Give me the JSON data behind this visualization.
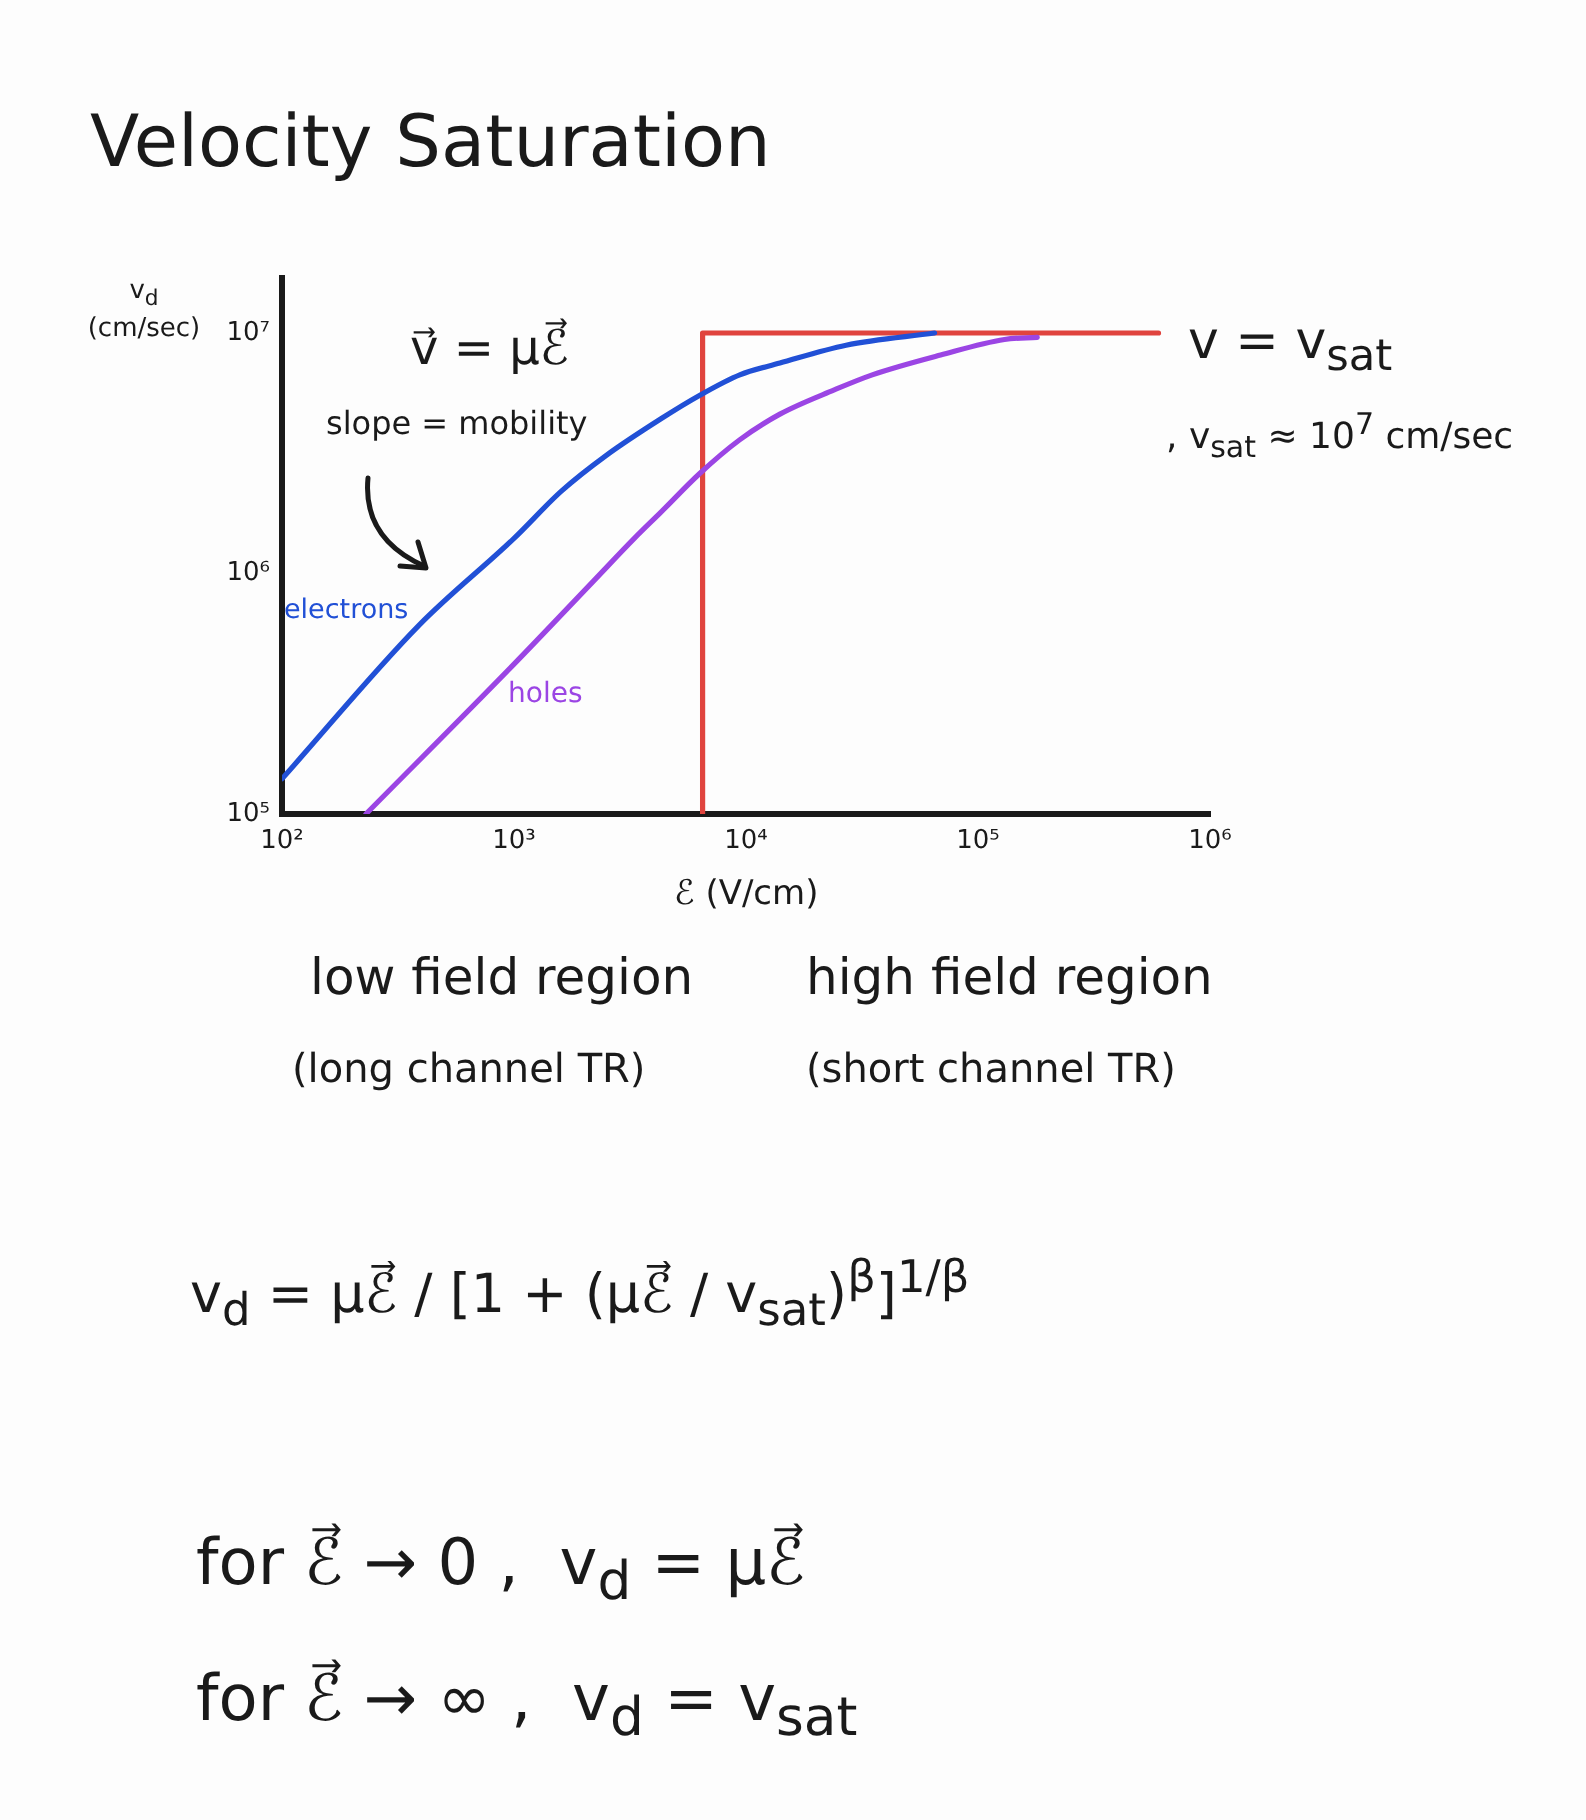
{
  "chart_data": {
    "type": "line",
    "title": "Velocity Saturation",
    "xlabel": "ℰ (V/cm)",
    "ylabel": "v$_{d}$ (cm/sec)",
    "series": [
      {
        "name": "electrons",
        "color": "#2150d6",
        "x": [
          100,
          390,
          1000,
          1600,
          2500,
          4300,
          6300,
          9400,
          14000,
          27000,
          65000
        ],
        "values": [
          140000,
          610000,
          1400000,
          2200000,
          3100000,
          4400000,
          5500000,
          6700000,
          7500000,
          8900000,
          10000000
        ]
      },
      {
        "name": "holes",
        "color": "#9b45e4",
        "x": [
          230,
          1000,
          2200,
          3300,
          4300,
          6300,
          9400,
          14000,
          24000,
          35000,
          69000,
          130000,
          180000
        ],
        "values": [
          100000,
          420000,
          930000,
          1400000,
          1800000,
          2600000,
          3600000,
          4600000,
          5800000,
          6700000,
          8100000,
          9400000,
          9600000
        ]
      },
      {
        "name": "v = v$_{sat}$",
        "color": "#e0443e",
        "x": [
          6500,
          6500,
          600000
        ],
        "values": [
          100000,
          10000000,
          10000000
        ]
      }
    ],
    "xlim": [
      100,
      1000000
    ],
    "ylim": [
      100000,
      17000000
    ],
    "xticks": [
      {
        "value": 100,
        "label": "10²"
      },
      {
        "value": 1000,
        "label": "10³"
      },
      {
        "value": 10000,
        "label": "10⁴"
      },
      {
        "value": 100000,
        "label": "10⁵"
      },
      {
        "value": 1000000,
        "label": "10⁶"
      }
    ],
    "yticks": [
      {
        "value": 100000,
        "label": "10⁵"
      },
      {
        "value": 1000000,
        "label": "10⁶"
      },
      {
        "value": 10000000,
        "label": "10⁷"
      }
    ],
    "log": "xy",
    "annotations": [
      "v⃗ = μℰ⃗",
      "slope = mobility",
      ", v$_{sat}$ ≈ 10$^{7}$ cm/sec",
      "low field region",
      "(long channel TR)",
      "high field region",
      "(short channel TR)",
      "v$_{d}$ = μℰ⃗ / [1 + (μℰ⃗ / v$_{sat}$)$^{β}$]$^{1/β}$",
      "for ℰ⃗ → 0 ,  v$_{d}$ = μℰ⃗",
      "for ℰ⃗ → ∞ ,  v$_{d}$ = v$_{sat}$"
    ]
  }
}
